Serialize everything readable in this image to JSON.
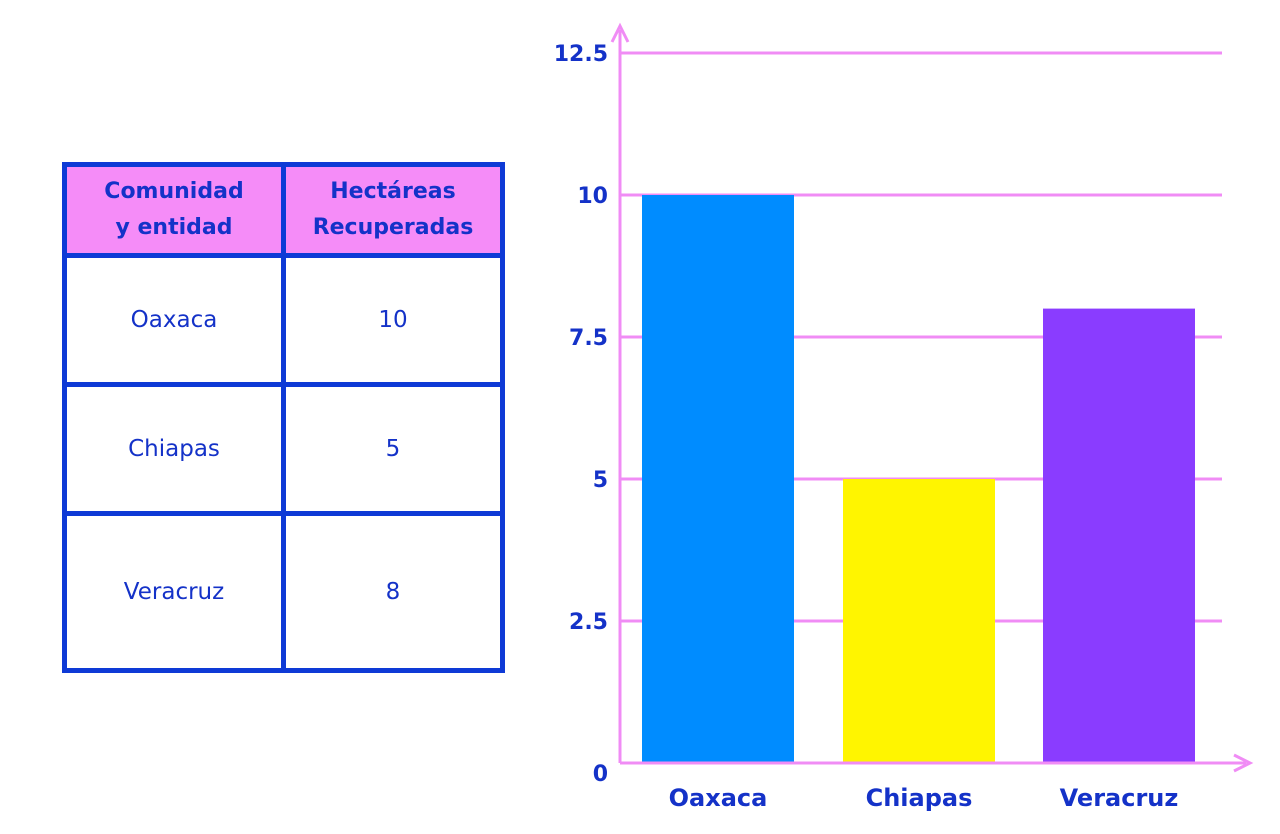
{
  "table": {
    "header": {
      "col1": [
        "Comunidad",
        "y entidad"
      ],
      "col2": [
        "Hectáreas",
        "Recuperadas"
      ]
    },
    "rows": [
      {
        "comunidad": "Oaxaca",
        "hectareas": "10"
      },
      {
        "comunidad": "Chiapas",
        "hectareas": "5"
      },
      {
        "comunidad": "Veracruz",
        "hectareas": "8"
      }
    ]
  },
  "colors": {
    "table_border": "#0e3ad6",
    "header_fill": "#f58cf8",
    "text": "#1432c8",
    "axis_grid": "#f08cf5"
  },
  "chart_data": {
    "type": "bar",
    "categories": [
      "Oaxaca",
      "Chiapas",
      "Veracruz"
    ],
    "values": [
      10,
      5,
      8
    ],
    "bar_colors": [
      "#008cff",
      "#fff500",
      "#8a3cff"
    ],
    "ylim": [
      0,
      12.5
    ],
    "yticks": [
      "0",
      "2.5",
      "5",
      "7.5",
      "10",
      "12.5"
    ],
    "grid": true,
    "title": "",
    "xlabel": "",
    "ylabel": ""
  }
}
